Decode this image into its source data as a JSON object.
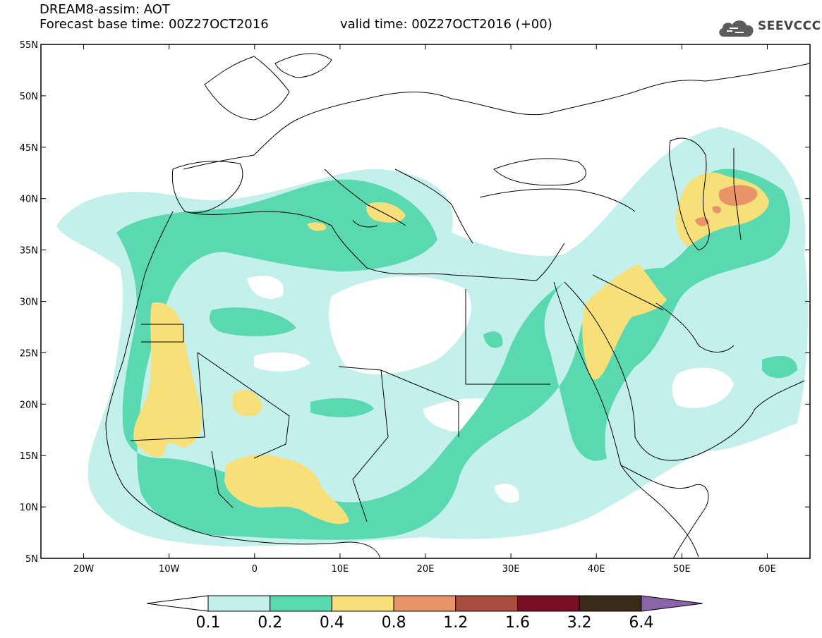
{
  "header": {
    "model_line": "DREAM8-assim: AOT",
    "base_time": "Forecast base time: 00Z27OCT2016",
    "valid_time": "valid time: 00Z27OCT2016 (+00)",
    "logo_text": "SEEVCCC",
    "logo_icon": "cloud-icon"
  },
  "map": {
    "lon_range": [
      -25,
      65
    ],
    "lat_range": [
      5,
      55
    ],
    "lat_ticks": [
      "5N",
      "10N",
      "15N",
      "20N",
      "25N",
      "30N",
      "35N",
      "40N",
      "45N",
      "50N",
      "55N"
    ],
    "lon_ticks": [
      "20W",
      "10W",
      "0",
      "10E",
      "20E",
      "30E",
      "40E",
      "50E",
      "60E"
    ]
  },
  "legend": {
    "labels": [
      "0.1",
      "0.2",
      "0.4",
      "0.8",
      "1.2",
      "1.6",
      "3.2",
      "6.4"
    ],
    "colors": [
      "#ffffff",
      "#c3f0ea",
      "#5ad9b1",
      "#f7e07a",
      "#e8936a",
      "#a84c3e",
      "#7a0e27",
      "#3a2a1a",
      "#8b63a8"
    ]
  }
}
